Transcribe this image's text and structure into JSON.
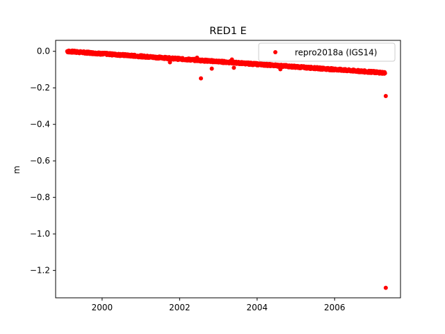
{
  "chart_data": {
    "type": "scatter",
    "title": "RED1 E",
    "xlabel": "",
    "ylabel": "m",
    "xlim": [
      1998.8,
      2007.7
    ],
    "ylim": [
      -1.35,
      0.06
    ],
    "xticks": [
      2000,
      2002,
      2004,
      2006
    ],
    "yticks": [
      0.0,
      -0.2,
      -0.4,
      -0.6,
      -0.8,
      -1.0,
      -1.2
    ],
    "xtick_labels": [
      "2000",
      "2002",
      "2004",
      "2006"
    ],
    "ytick_labels": [
      "0.0",
      "−0.2",
      "−0.4",
      "−0.6",
      "−0.8",
      "−1.0",
      "−1.2"
    ],
    "grid": false,
    "legend_position": "top-right",
    "series": [
      {
        "name": "repro2018a (IGS14)",
        "color": "#ff0000",
        "marker": "circle",
        "trend": {
          "x_start": 1999.1,
          "y_start": 0.0,
          "x_end": 2007.3,
          "y_end": -0.118
        },
        "outliers": [
          {
            "x": 2001.75,
            "y": -0.06
          },
          {
            "x": 2002.45,
            "y": -0.035
          },
          {
            "x": 2002.55,
            "y": -0.148
          },
          {
            "x": 2002.83,
            "y": -0.095
          },
          {
            "x": 2003.35,
            "y": -0.045
          },
          {
            "x": 2003.4,
            "y": -0.09
          },
          {
            "x": 2004.6,
            "y": -0.098
          },
          {
            "x": 2007.32,
            "y": -0.245
          },
          {
            "x": 2007.32,
            "y": -1.295
          }
        ]
      }
    ]
  }
}
